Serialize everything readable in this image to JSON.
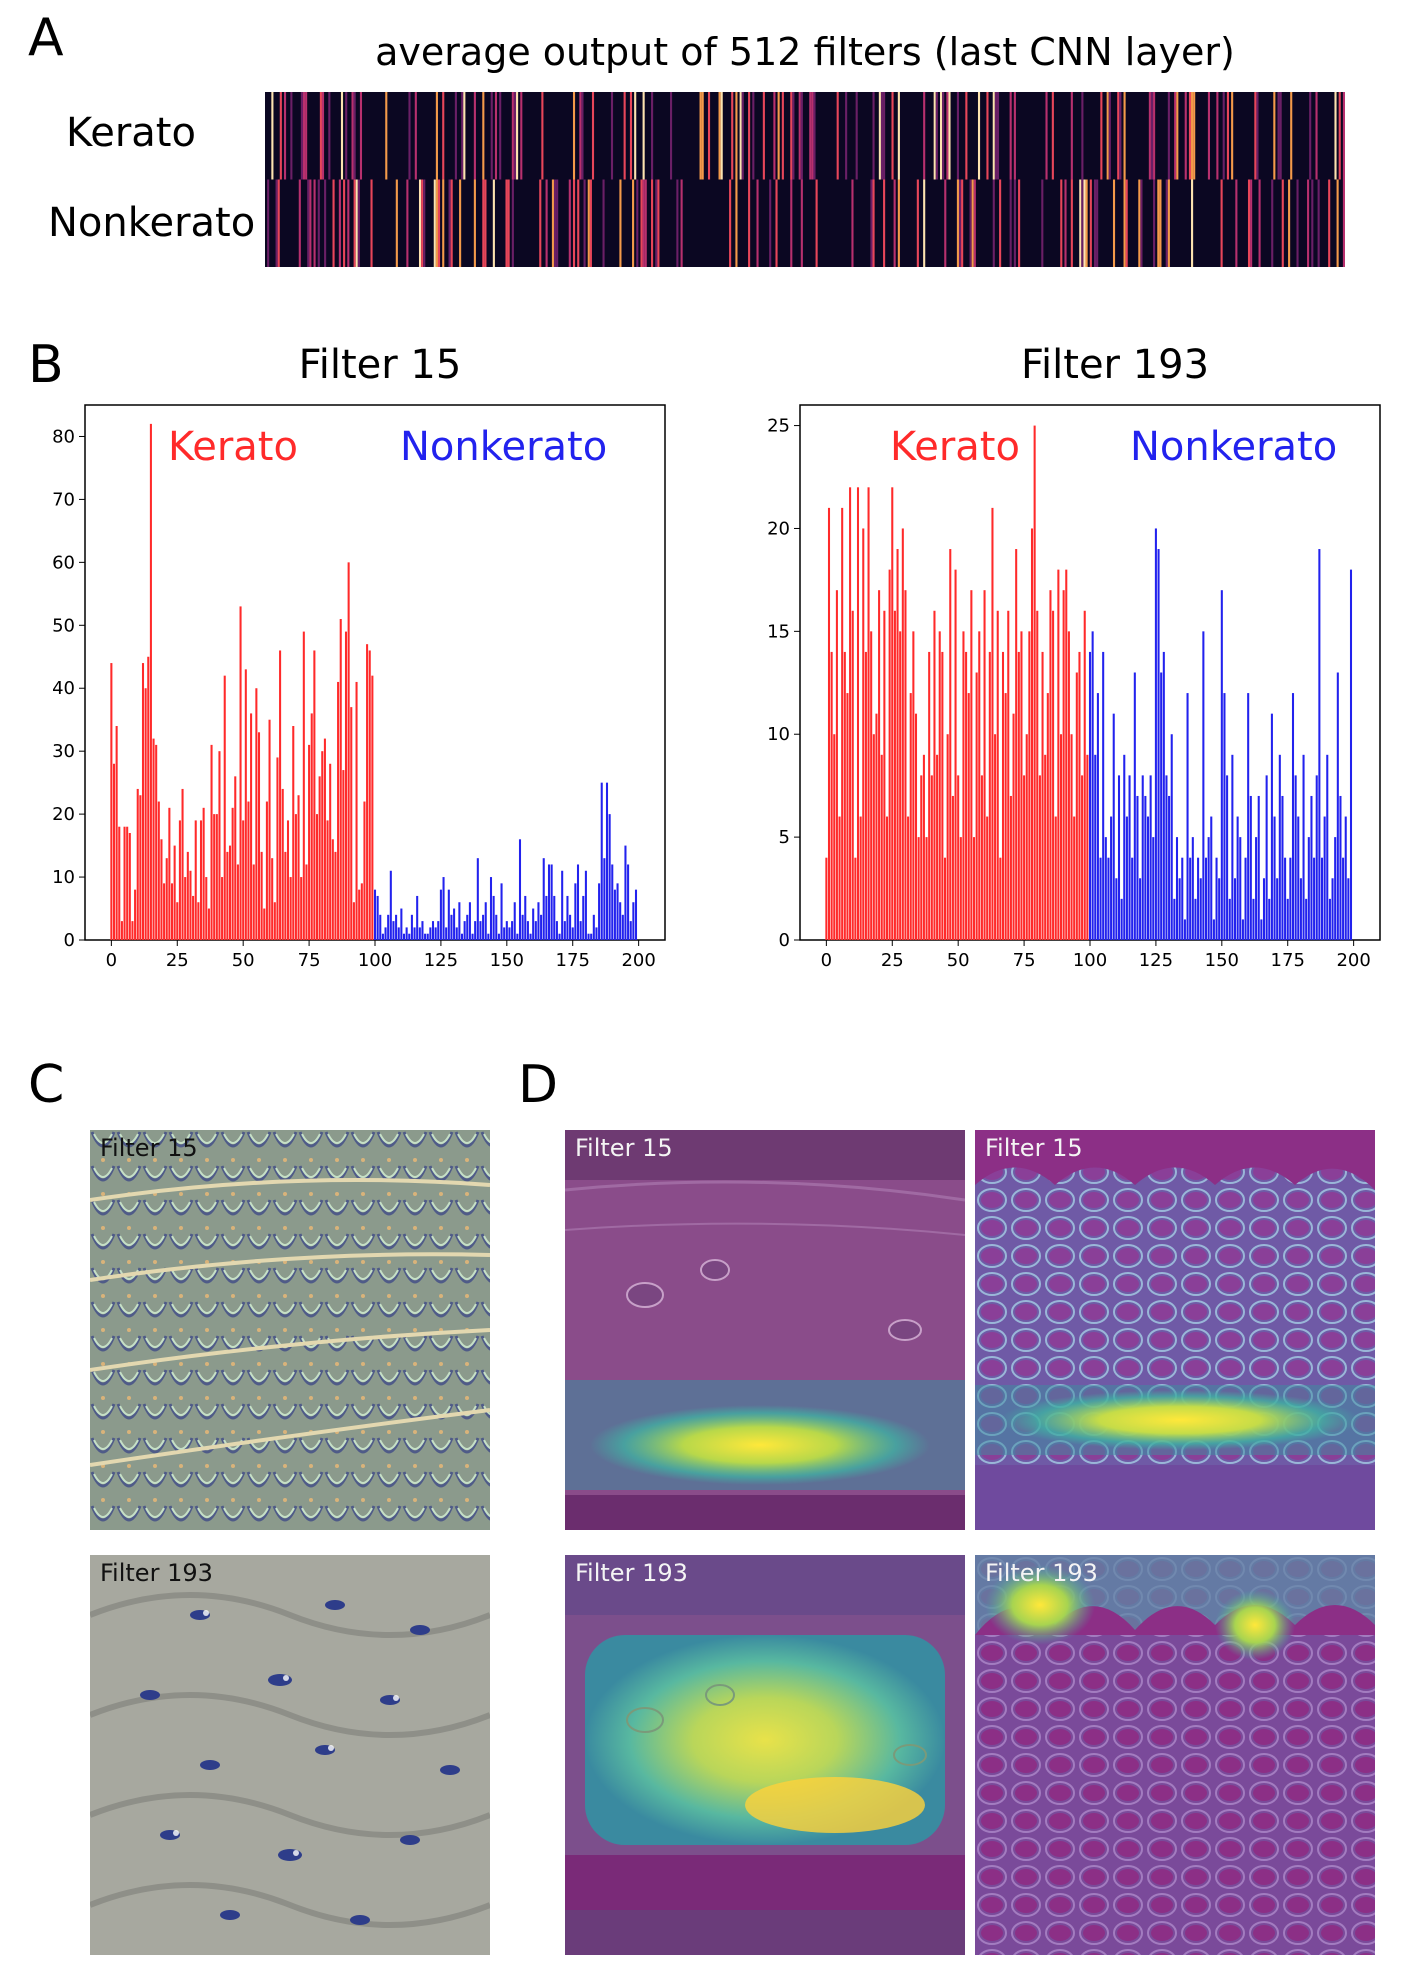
{
  "panels": {
    "a": "A",
    "b": "B",
    "c": "C",
    "d": "D"
  },
  "heatmap": {
    "title": "average output of 512 filters (last CNN layer)",
    "row_labels": [
      "Kerato",
      "Nonkerato"
    ]
  },
  "chart_data": [
    {
      "type": "bar",
      "title": "Filter 15",
      "xlim": [
        0,
        200
      ],
      "ylim": [
        0,
        85
      ],
      "xticks": [
        0,
        25,
        50,
        75,
        100,
        125,
        150,
        175,
        200
      ],
      "yticks": [
        0,
        10,
        20,
        30,
        40,
        50,
        60,
        70,
        80
      ],
      "series": [
        {
          "name": "Kerato",
          "color": "#ff2a2a",
          "x_start": 0,
          "values": [
            44,
            28,
            34,
            18,
            3,
            18,
            18,
            17,
            3,
            8,
            24,
            23,
            44,
            40,
            45,
            82,
            32,
            31,
            22,
            16,
            9,
            13,
            21,
            9,
            15,
            6,
            19,
            24,
            10,
            14,
            11,
            7,
            19,
            6,
            19,
            21,
            10,
            5,
            31,
            20,
            20,
            30,
            10,
            42,
            14,
            15,
            21,
            26,
            12,
            53,
            19,
            43,
            22,
            36,
            12,
            40,
            33,
            14,
            5,
            22,
            35,
            13,
            6,
            29,
            46,
            24,
            14,
            19,
            10,
            34,
            20,
            23,
            10,
            49,
            12,
            31,
            36,
            46,
            20,
            26,
            30,
            32,
            19,
            28,
            16,
            14,
            41,
            51,
            27,
            49,
            60,
            37,
            6,
            41,
            8,
            9,
            22,
            47,
            46,
            42
          ]
        },
        {
          "name": "Nonkerato",
          "color": "#2222ee",
          "x_start": 100,
          "values": [
            8,
            7,
            4,
            1,
            2,
            4,
            11,
            3,
            4,
            2,
            5,
            1,
            2,
            1,
            4,
            2,
            7,
            2,
            3,
            1,
            1,
            2,
            3,
            2,
            3,
            8,
            10,
            2,
            8,
            4,
            5,
            2,
            6,
            1,
            3,
            4,
            6,
            1,
            3,
            13,
            3,
            4,
            6,
            1,
            10,
            7,
            4,
            1,
            9,
            2,
            3,
            2,
            3,
            6,
            1,
            16,
            4,
            7,
            3,
            1,
            5,
            3,
            6,
            4,
            13,
            7,
            12,
            12,
            7,
            3,
            1,
            11,
            3,
            7,
            4,
            2,
            9,
            12,
            3,
            7,
            11,
            1,
            1,
            4,
            2,
            9,
            25,
            13,
            25,
            20,
            12,
            8,
            9,
            6,
            4,
            15,
            12,
            3,
            6,
            8
          ]
        }
      ]
    },
    {
      "type": "bar",
      "title": "Filter 193",
      "xlim": [
        0,
        200
      ],
      "ylim": [
        0,
        26
      ],
      "xticks": [
        0,
        25,
        50,
        75,
        100,
        125,
        150,
        175,
        200
      ],
      "yticks": [
        0,
        5,
        10,
        15,
        20,
        25
      ],
      "series": [
        {
          "name": "Kerato",
          "color": "#ff2a2a",
          "x_start": 0,
          "values": [
            4,
            21,
            14,
            10,
            17,
            6,
            21,
            14,
            12,
            22,
            16,
            4,
            22,
            6,
            20,
            14,
            22,
            15,
            10,
            11,
            17,
            9,
            16,
            6,
            18,
            22,
            16,
            19,
            15,
            20,
            17,
            6,
            12,
            15,
            11,
            5,
            8,
            9,
            5,
            14,
            8,
            16,
            9,
            15,
            14,
            4,
            10,
            19,
            7,
            18,
            8,
            5,
            15,
            14,
            12,
            17,
            5,
            13,
            15,
            8,
            17,
            6,
            14,
            21,
            10,
            16,
            4,
            14,
            12,
            16,
            7,
            11,
            19,
            14,
            15,
            8,
            10,
            15,
            20,
            25,
            16,
            8,
            14,
            9,
            12,
            17,
            16,
            6,
            18,
            10,
            17,
            18,
            15,
            10,
            6,
            13,
            14,
            8,
            16,
            9
          ]
        },
        {
          "name": "Nonkerato",
          "color": "#2222ee",
          "x_start": 100,
          "values": [
            14,
            15,
            9,
            12,
            4,
            14,
            5,
            4,
            6,
            11,
            3,
            8,
            2,
            9,
            6,
            8,
            4,
            13,
            7,
            3,
            8,
            7,
            6,
            8,
            5,
            20,
            19,
            13,
            14,
            8,
            7,
            10,
            2,
            5,
            3,
            4,
            1,
            12,
            4,
            5,
            2,
            4,
            3,
            15,
            4,
            5,
            6,
            1,
            4,
            3,
            17,
            12,
            8,
            2,
            9,
            3,
            6,
            5,
            1,
            4,
            12,
            7,
            2,
            5,
            7,
            1,
            3,
            8,
            2,
            11,
            6,
            3,
            9,
            7,
            4,
            2,
            4,
            12,
            8,
            6,
            3,
            9,
            2,
            5,
            7,
            4,
            8,
            19,
            4,
            6,
            9,
            2,
            3,
            5,
            13,
            7,
            4,
            6,
            3,
            18
          ]
        }
      ],
      "annotations": [
        "Kerato",
        "Nonkerato"
      ]
    }
  ],
  "panel_c": {
    "tiles": [
      {
        "label": "Filter 15"
      },
      {
        "label": "Filter 193"
      }
    ]
  },
  "panel_d": {
    "tiles": [
      {
        "label": "Filter 15"
      },
      {
        "label": "Filter 15"
      },
      {
        "label": "Filter 193"
      },
      {
        "label": "Filter 193"
      }
    ]
  }
}
